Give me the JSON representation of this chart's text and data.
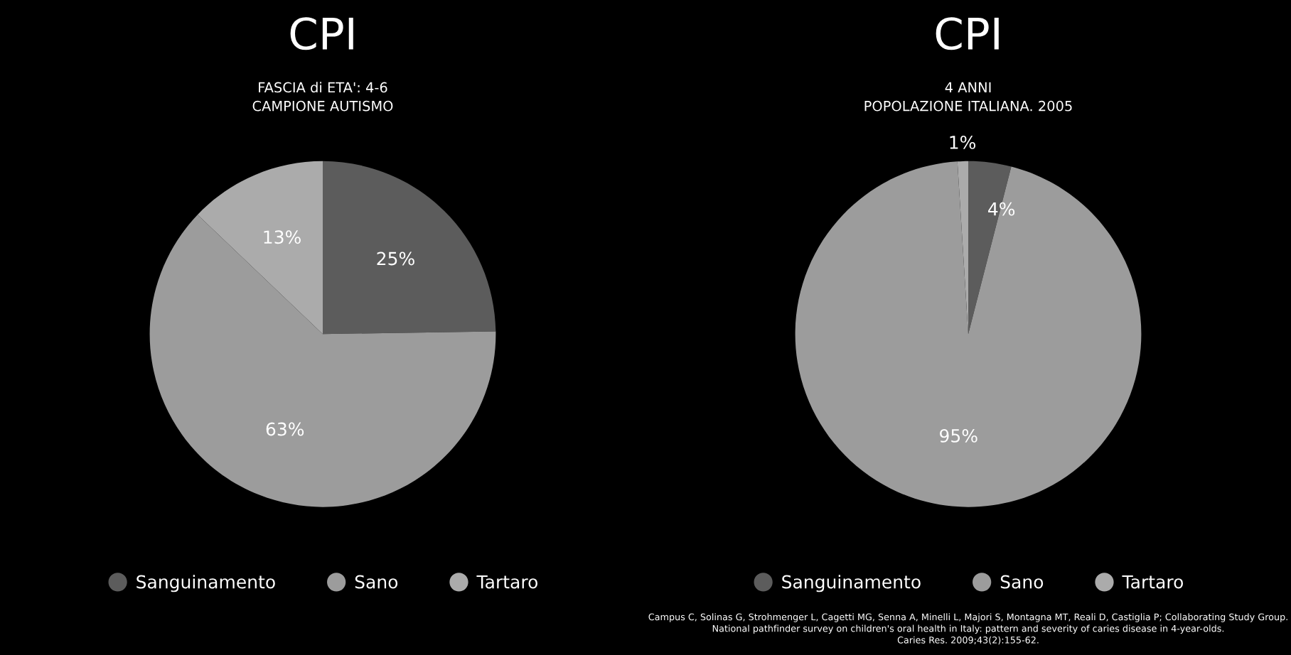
{
  "chart_data": [
    {
      "type": "pie",
      "title": "CPI",
      "subtitle": "FASCIA di ETA': 4-6\nCAMPIONE AUTISMO",
      "categories": [
        "Sanguinamento",
        "Sano",
        "Tartaro"
      ],
      "values": [
        25,
        63,
        13
      ],
      "colors": [
        "#5c5c5c",
        "#9c9c9c",
        "#ababab"
      ],
      "value_labels": [
        "25%",
        "63%",
        "13%"
      ],
      "legend": "bottom"
    },
    {
      "type": "pie",
      "title": "CPI",
      "subtitle": "4 ANNI\nPOPOLAZIONE ITALIANA. 2005",
      "categories": [
        "Sanguinamento",
        "Sano",
        "Tartaro"
      ],
      "values": [
        4,
        95,
        1
      ],
      "colors": [
        "#5c5c5c",
        "#9c9c9c",
        "#ababab"
      ],
      "value_labels": [
        "4%",
        "95%",
        "1%"
      ],
      "legend": "bottom",
      "annotations": [
        "Campus C, Solinas G, Strohmenger L, Cagetti MG, Senna A, Minelli L, Majori S, Montagna MT, Reali D, Castiglia P; Collaborating Study Group.\nNational pathfinder survey on children's oral health in Italy: pattern and severity of caries disease in 4-year-olds.\nCaries Res. 2009;43(2):155-62."
      ]
    }
  ]
}
